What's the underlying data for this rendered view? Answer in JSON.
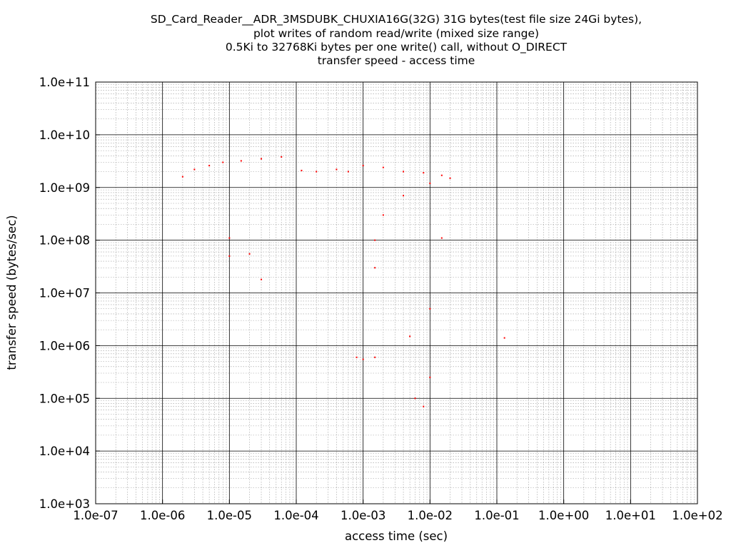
{
  "chart_data": {
    "type": "scatter",
    "title_lines": [
      "SD_Card_Reader__ADR_3MSDUBK_CHUXIA16G(32G) 31G bytes(test file size 24Gi bytes),",
      "plot writes of random read/write (mixed size range)",
      "0.5Ki to 32768Ki bytes per one write() call, without O_DIRECT",
      "transfer speed - access time"
    ],
    "xlabel": "access time (sec)",
    "ylabel": "transfer speed (bytes/sec)",
    "x_scale": "log",
    "y_scale": "log",
    "xlim": [
      1e-07,
      100
    ],
    "ylim": [
      1000,
      100000000000.0
    ],
    "x_tick_labels": [
      "1.0e-07",
      "1.0e-06",
      "1.0e-05",
      "1.0e-04",
      "1.0e-03",
      "1.0e-02",
      "1.0e-01",
      "1.0e+00",
      "1.0e+01",
      "1.0e+02"
    ],
    "y_tick_labels": [
      "1.0e+03",
      "1.0e+04",
      "1.0e+05",
      "1.0e+06",
      "1.0e+07",
      "1.0e+08",
      "1.0e+09",
      "1.0e+10",
      "1.0e+11"
    ],
    "grid": true,
    "marker_color": "#ff0000",
    "series": [
      {
        "points": [
          [
            2e-06,
            1600000000.0
          ],
          [
            3e-06,
            2200000000.0
          ],
          [
            5e-06,
            2600000000.0
          ],
          [
            8e-06,
            3000000000.0
          ],
          [
            1.5e-05,
            3200000000.0
          ],
          [
            3e-05,
            3500000000.0
          ],
          [
            6e-05,
            3800000000.0
          ],
          [
            0.00012,
            2100000000.0
          ],
          [
            0.0002,
            2000000000.0
          ],
          [
            0.0004,
            2200000000.0
          ],
          [
            0.0006,
            2000000000.0
          ],
          [
            0.001,
            2600000000.0
          ],
          [
            0.002,
            2400000000.0
          ],
          [
            0.004,
            2000000000.0
          ],
          [
            0.008,
            1900000000.0
          ],
          [
            0.015,
            1700000000.0
          ],
          [
            0.02,
            1500000000.0
          ],
          [
            1e-05,
            110000000.0
          ],
          [
            2e-05,
            55000000.0
          ],
          [
            3e-05,
            18000000.0
          ],
          [
            1e-05,
            50000000.0
          ],
          [
            0.0008,
            600000.0
          ],
          [
            0.001,
            550000.0
          ],
          [
            0.0015,
            600000.0
          ],
          [
            0.0015,
            30000000.0
          ],
          [
            0.0015,
            100000000.0
          ],
          [
            0.002,
            300000000.0
          ],
          [
            0.004,
            700000000.0
          ],
          [
            0.01,
            1200000000.0
          ],
          [
            0.005,
            1500000.0
          ],
          [
            0.006,
            100000.0
          ],
          [
            0.008,
            70000.0
          ],
          [
            0.01,
            250000.0
          ],
          [
            0.01,
            5000000.0
          ],
          [
            0.015,
            110000000.0
          ],
          [
            0.13,
            1400000.0
          ]
        ]
      }
    ]
  }
}
